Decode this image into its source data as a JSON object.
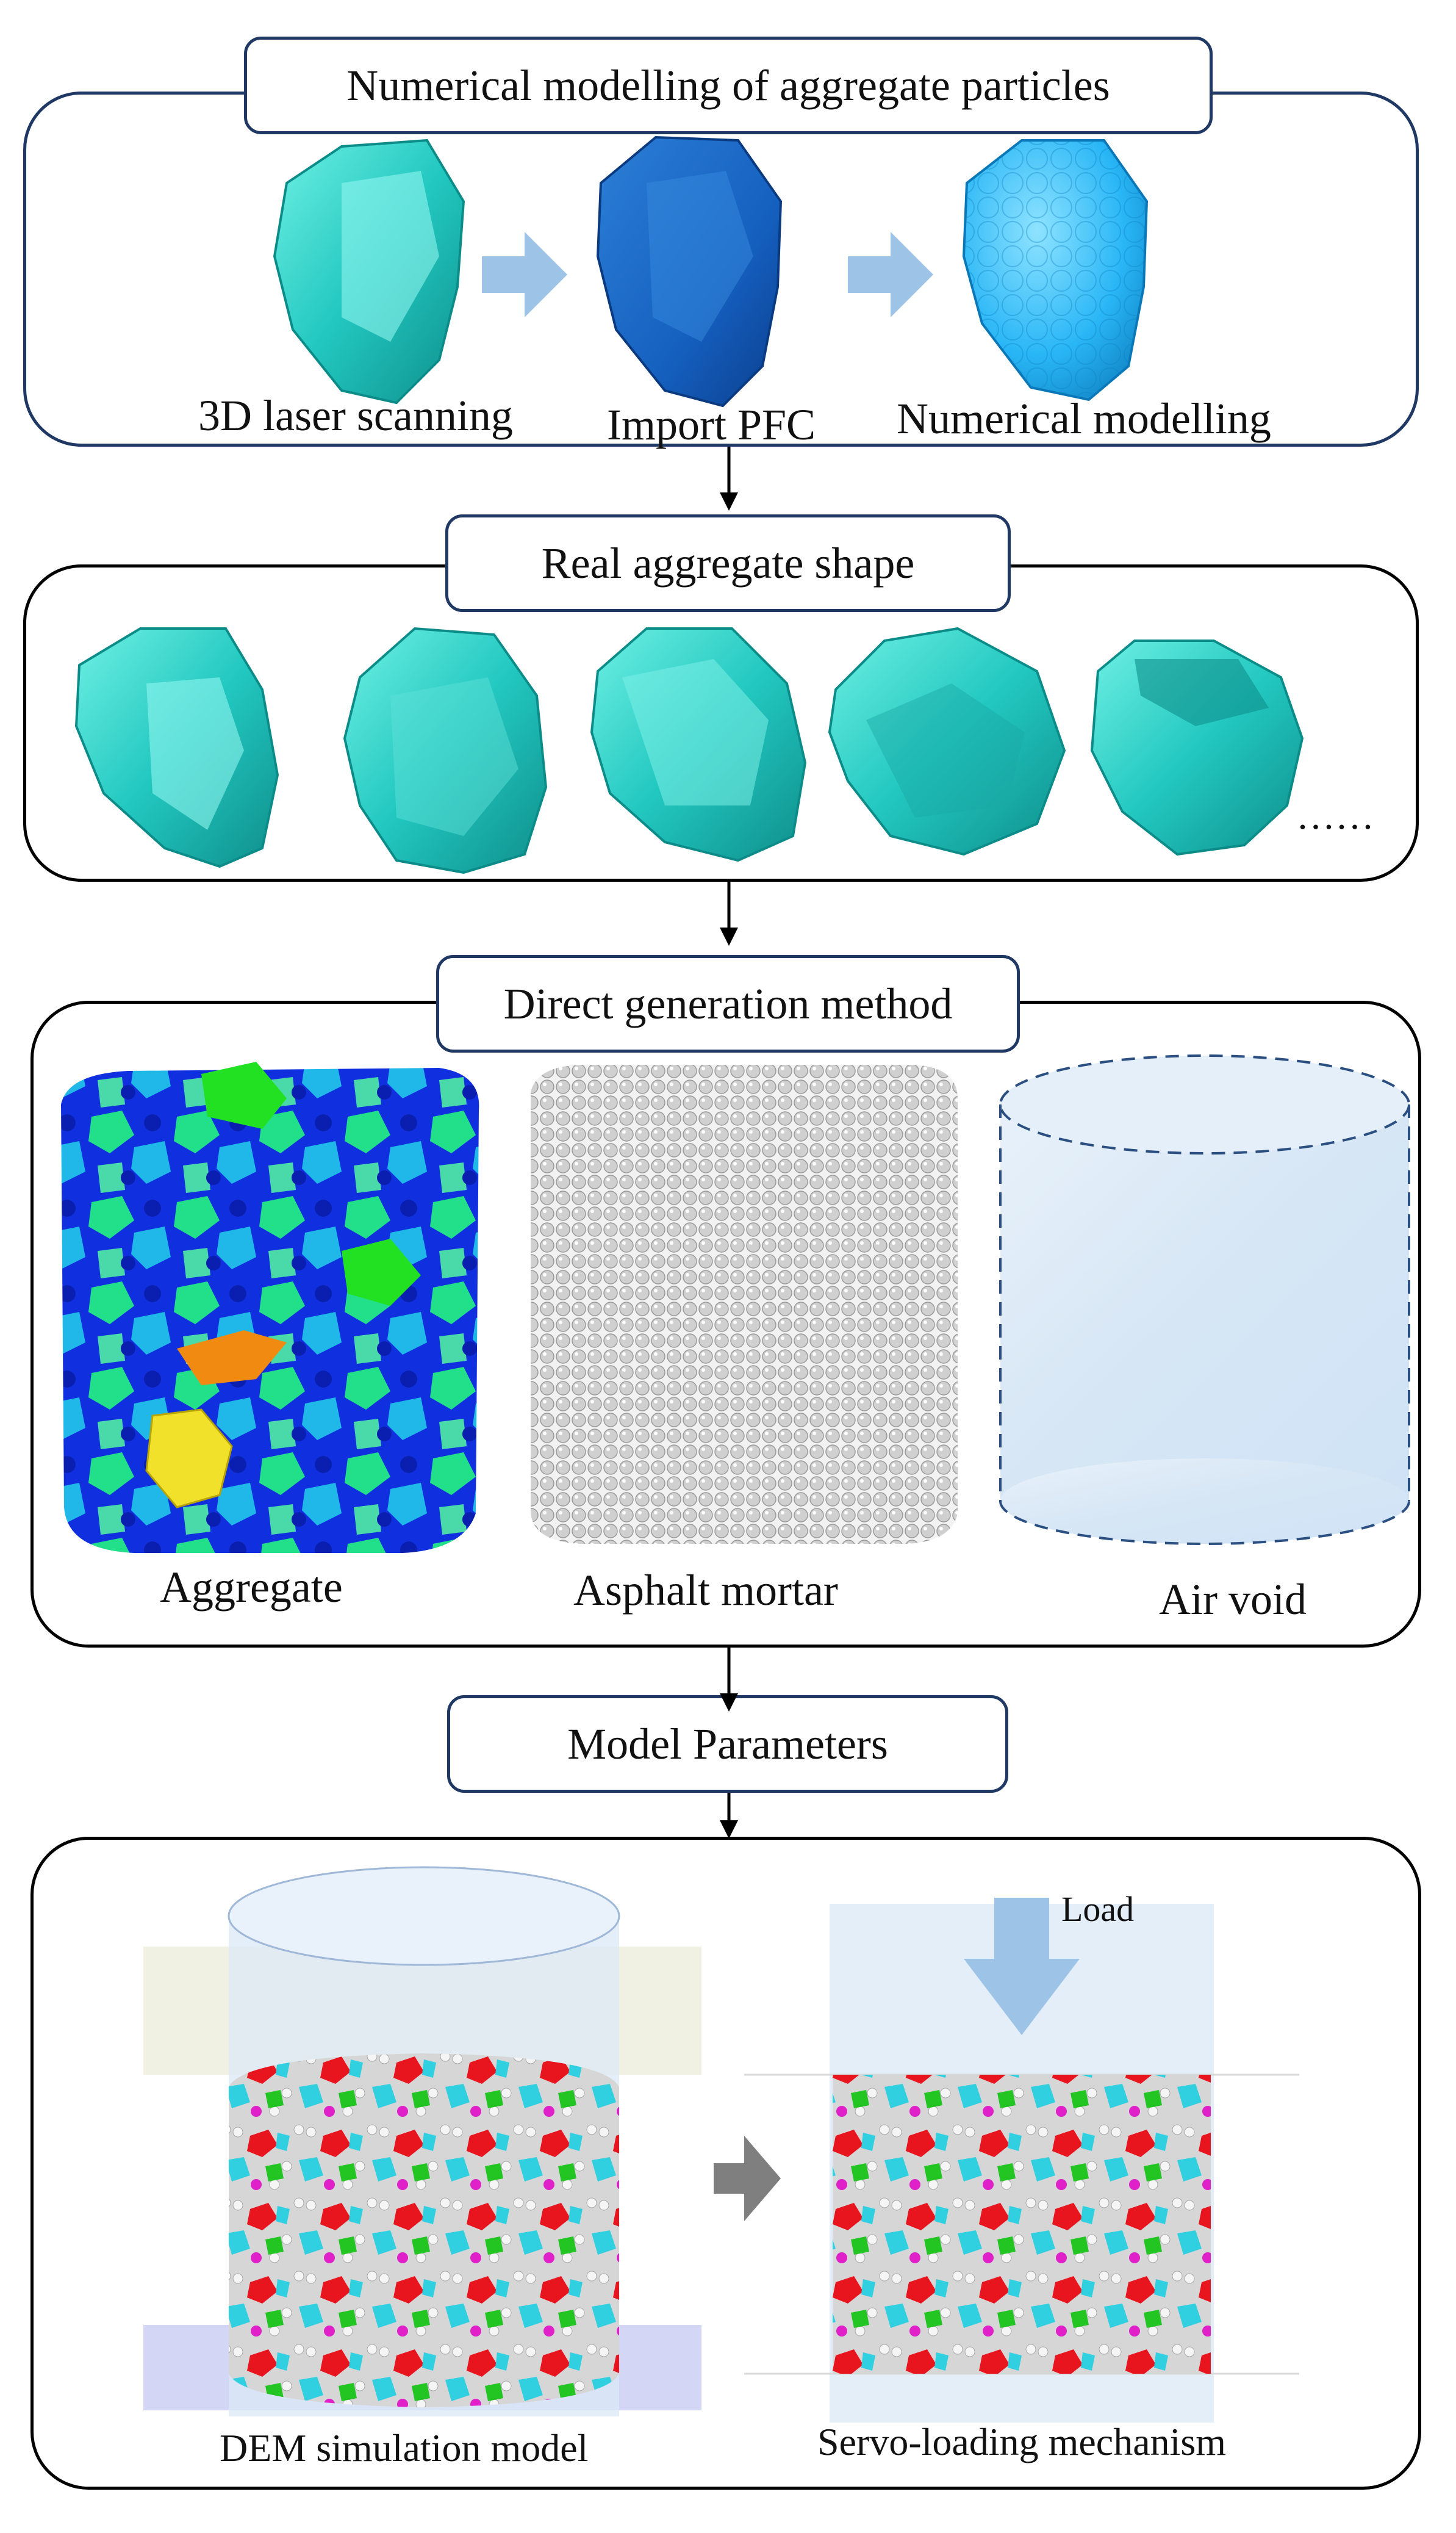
{
  "stages": [
    {
      "title": "Numerical modelling of aggregate particles",
      "items": [
        "3D laser scanning",
        "Import PFC",
        "Numerical modelling"
      ]
    },
    {
      "title": "Real aggregate shape",
      "ellipsis": "……"
    },
    {
      "title": "Direct generation method",
      "items": [
        "Aggregate",
        "Asphalt mortar",
        "Air void"
      ]
    },
    {
      "title": "Model Parameters"
    },
    {
      "items": [
        "DEM simulation model",
        "Servo-loading mechanism"
      ],
      "load_label": "Load"
    }
  ],
  "colors": {
    "panel_border_blue": "#1f3864",
    "panel_border_black": "#000000",
    "process_arrow": "#9dc3e6",
    "aggregate_cyan": "#20c6c0",
    "aggregate_blue": "#1565c0",
    "aggregate_light_blue": "#29b6f6",
    "mortar_grey": "#bdbdbd",
    "air_void_blue": "#dce9f5",
    "particle_red": "#e8141e",
    "particle_green": "#22c522",
    "particle_magenta": "#e020c8",
    "particle_cyan": "#30d0e0"
  }
}
